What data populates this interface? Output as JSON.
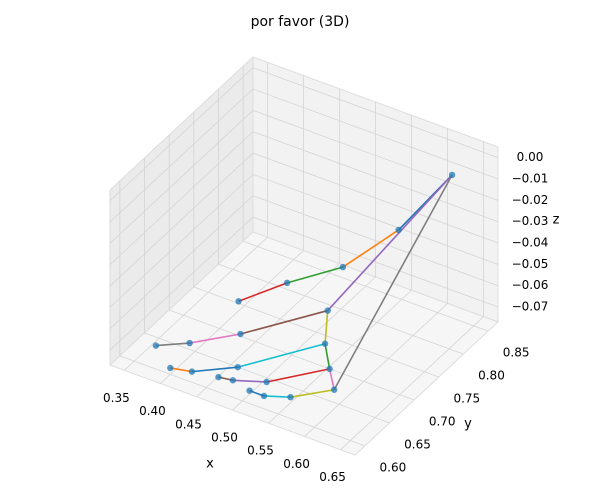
{
  "chart_data": {
    "type": "scatter3d",
    "title": "por favor (3D)",
    "xlabel": "x",
    "ylabel": "y",
    "zlabel": "z",
    "x": [
      0.62,
      0.58,
      0.53,
      0.48,
      0.44,
      0.55,
      0.47,
      0.42,
      0.38,
      0.56,
      0.48,
      0.43,
      0.4,
      0.58,
      0.52,
      0.48,
      0.46,
      0.6,
      0.56,
      0.53,
      0.51
    ],
    "y": [
      0.85,
      0.8,
      0.76,
      0.72,
      0.68,
      0.7,
      0.64,
      0.61,
      0.6,
      0.68,
      0.62,
      0.6,
      0.6,
      0.66,
      0.62,
      0.61,
      0.61,
      0.64,
      0.61,
      0.6,
      0.6
    ],
    "z": [
      -0.01,
      -0.03,
      -0.045,
      -0.05,
      -0.055,
      -0.05,
      -0.058,
      -0.062,
      -0.066,
      -0.06,
      -0.068,
      -0.072,
      -0.074,
      -0.065,
      -0.07,
      -0.072,
      -0.073,
      -0.068,
      -0.07,
      -0.071,
      -0.071
    ],
    "color": "#1f77b4",
    "line_colors": [
      "#1f77b4",
      "#ff7f0e",
      "#2ca02c",
      "#d62728",
      "#9467bd",
      "#8c564b",
      "#e377c2",
      "#7f7f7f",
      "#bcbd22",
      "#17becf"
    ],
    "xlim": [
      0.33,
      0.67
    ],
    "ylim": [
      0.58,
      0.87
    ],
    "zlim": [
      -0.077,
      0.005
    ],
    "xticks": [
      0.35,
      {
        "value": 0.4,
        "label": "0.40"
      },
      0.45,
      {
        "value": 0.5,
        "label": "0.50"
      },
      0.55,
      {
        "value": 0.6,
        "label": "0.60"
      },
      0.65
    ],
    "yticks": [
      {
        "value": 0.6,
        "label": "0.60"
      },
      0.65,
      {
        "value": 0.7,
        "label": "0.70"
      },
      0.75,
      {
        "value": 0.8,
        "label": "0.80"
      },
      0.85
    ],
    "zticks": [
      {
        "value": 0,
        "label": "0.00"
      },
      {
        "value": -0.01,
        "label": "−0.01"
      },
      {
        "value": -0.02,
        "label": "−0.02"
      },
      {
        "value": -0.03,
        "label": "−0.03"
      },
      {
        "value": -0.04,
        "label": "−0.04"
      },
      {
        "value": -0.05,
        "label": "−0.05"
      },
      {
        "value": -0.06,
        "label": "−0.06"
      },
      {
        "value": -0.07,
        "label": "−0.07"
      }
    ],
    "grid": true
  }
}
